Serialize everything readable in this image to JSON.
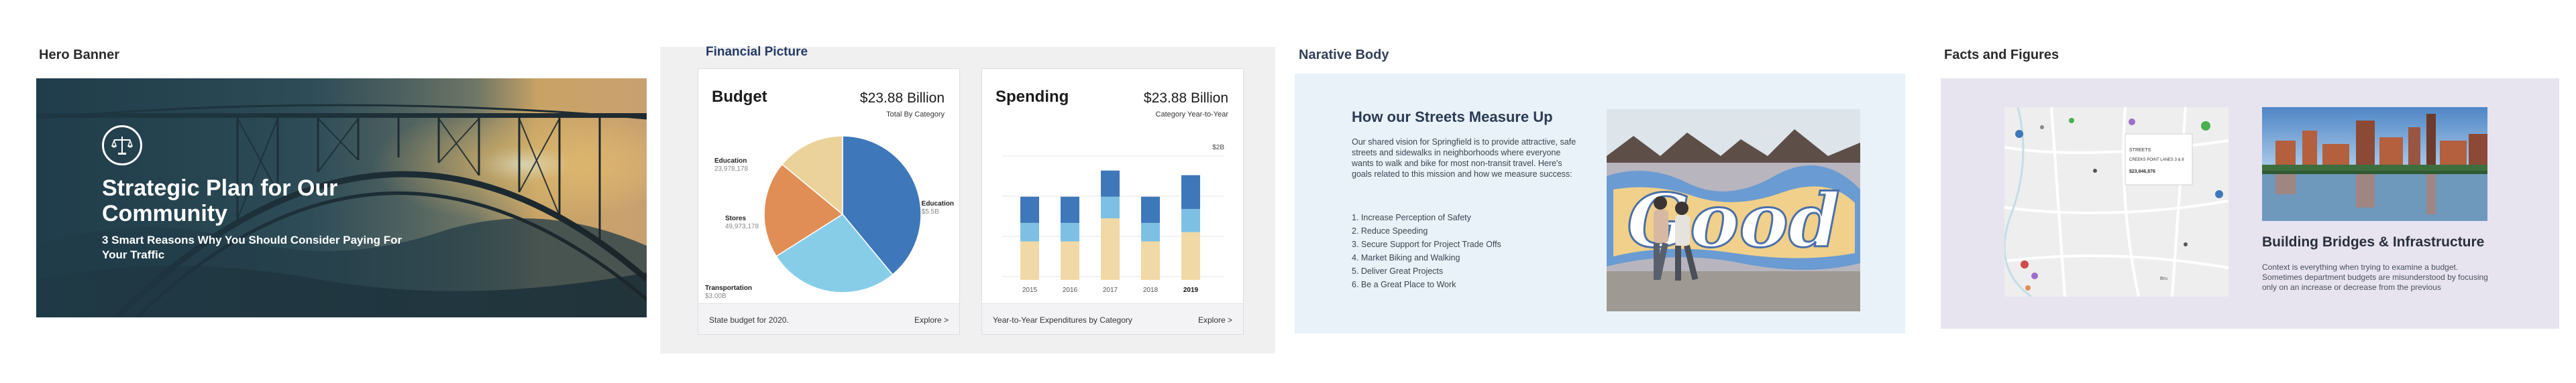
{
  "sections": {
    "hero": "Hero Banner",
    "financial": "Financial Picture",
    "narrative": "Narative Body",
    "facts": "Facts and Figures"
  },
  "hero": {
    "title": "Strategic Plan for Our Community",
    "subtitle": "3 Smart Reasons Why You Should Consider Paying For Your Traffic",
    "logo_icon": "scales-of-justice-icon"
  },
  "budget_card": {
    "title": "Budget",
    "amount": "$23.88 Billion",
    "amount_sub": "Total By Category",
    "footer_left": "State budget for 2020.",
    "footer_right": "Explore >",
    "labels": [
      {
        "name": "Education",
        "value": "23,978,178"
      },
      {
        "name": "Stores",
        "value": "49,973,178"
      },
      {
        "name": "Transportation",
        "value": "$3.00B"
      },
      {
        "name": "Education",
        "value": "$5.5B"
      }
    ]
  },
  "spending_card": {
    "title": "Spending",
    "amount": "$23.88 Billion",
    "amount_sub": "Category Year-to-Year",
    "top_value": "$2B",
    "footer_left": "Year-to-Year Expenditures  by Category",
    "footer_right": "Explore >"
  },
  "chart_data": [
    {
      "type": "pie",
      "categories": [
        "Education (blue)",
        "Transportation",
        "Stores",
        "Education"
      ],
      "values": [
        39,
        27,
        20,
        14
      ],
      "colors": [
        "#3f78ba",
        "#88cde8",
        "#e08e55",
        "#ead29a"
      ],
      "title": "Budget"
    },
    {
      "type": "bar",
      "title": "Spending",
      "categories": [
        "2015",
        "2016",
        "2017",
        "2018",
        "2019"
      ],
      "series": [
        {
          "values": [
            25,
            25,
            40,
            25,
            31
          ],
          "color": "#f0d9a6"
        },
        {
          "values": [
            12,
            12,
            14,
            12,
            15
          ],
          "color": "#7ec0e4"
        },
        {
          "values": [
            17,
            17,
            17,
            17,
            22
          ],
          "color": "#3f78ba"
        }
      ]
    }
  ],
  "narrative": {
    "heading": "How our Streets Measure Up",
    "body": "Our shared vision for Springfield is to provide attractive, safe streets and sidewalks in neighborhoods where everyone wants to walk and bike for most non-transit travel. Here's goals related to this mission and how we measure success:",
    "goals": [
      "1.  Increase Perception of Safety",
      "2.  Reduce Speeding",
      "3.  Secure Support for Project Trade Offs",
      "4.  Market Biking and Walking",
      "5.  Deliver Great Projects",
      "6.  Be a Great Place to Work"
    ],
    "mural_text": "Good"
  },
  "facts": {
    "heading": "Building Bridges & Infrastructure",
    "body": "Context is everything when trying to examine a budget. Sometimes department budgets are misunderstood by focusing only on an increase or decrease from the previous",
    "map_popup": {
      "line1": "STREETS",
      "line2": "CREEKS POINT LANES 3 & 8",
      "line3": "$23,846,876"
    },
    "map_place": "Bru"
  },
  "colors": {
    "navy": "#243c64",
    "pie_blue": "#3f78ba",
    "light_blue": "#88cde8",
    "orange": "#e08e55",
    "sand": "#ead29a",
    "accent_green": "#4caf50"
  }
}
